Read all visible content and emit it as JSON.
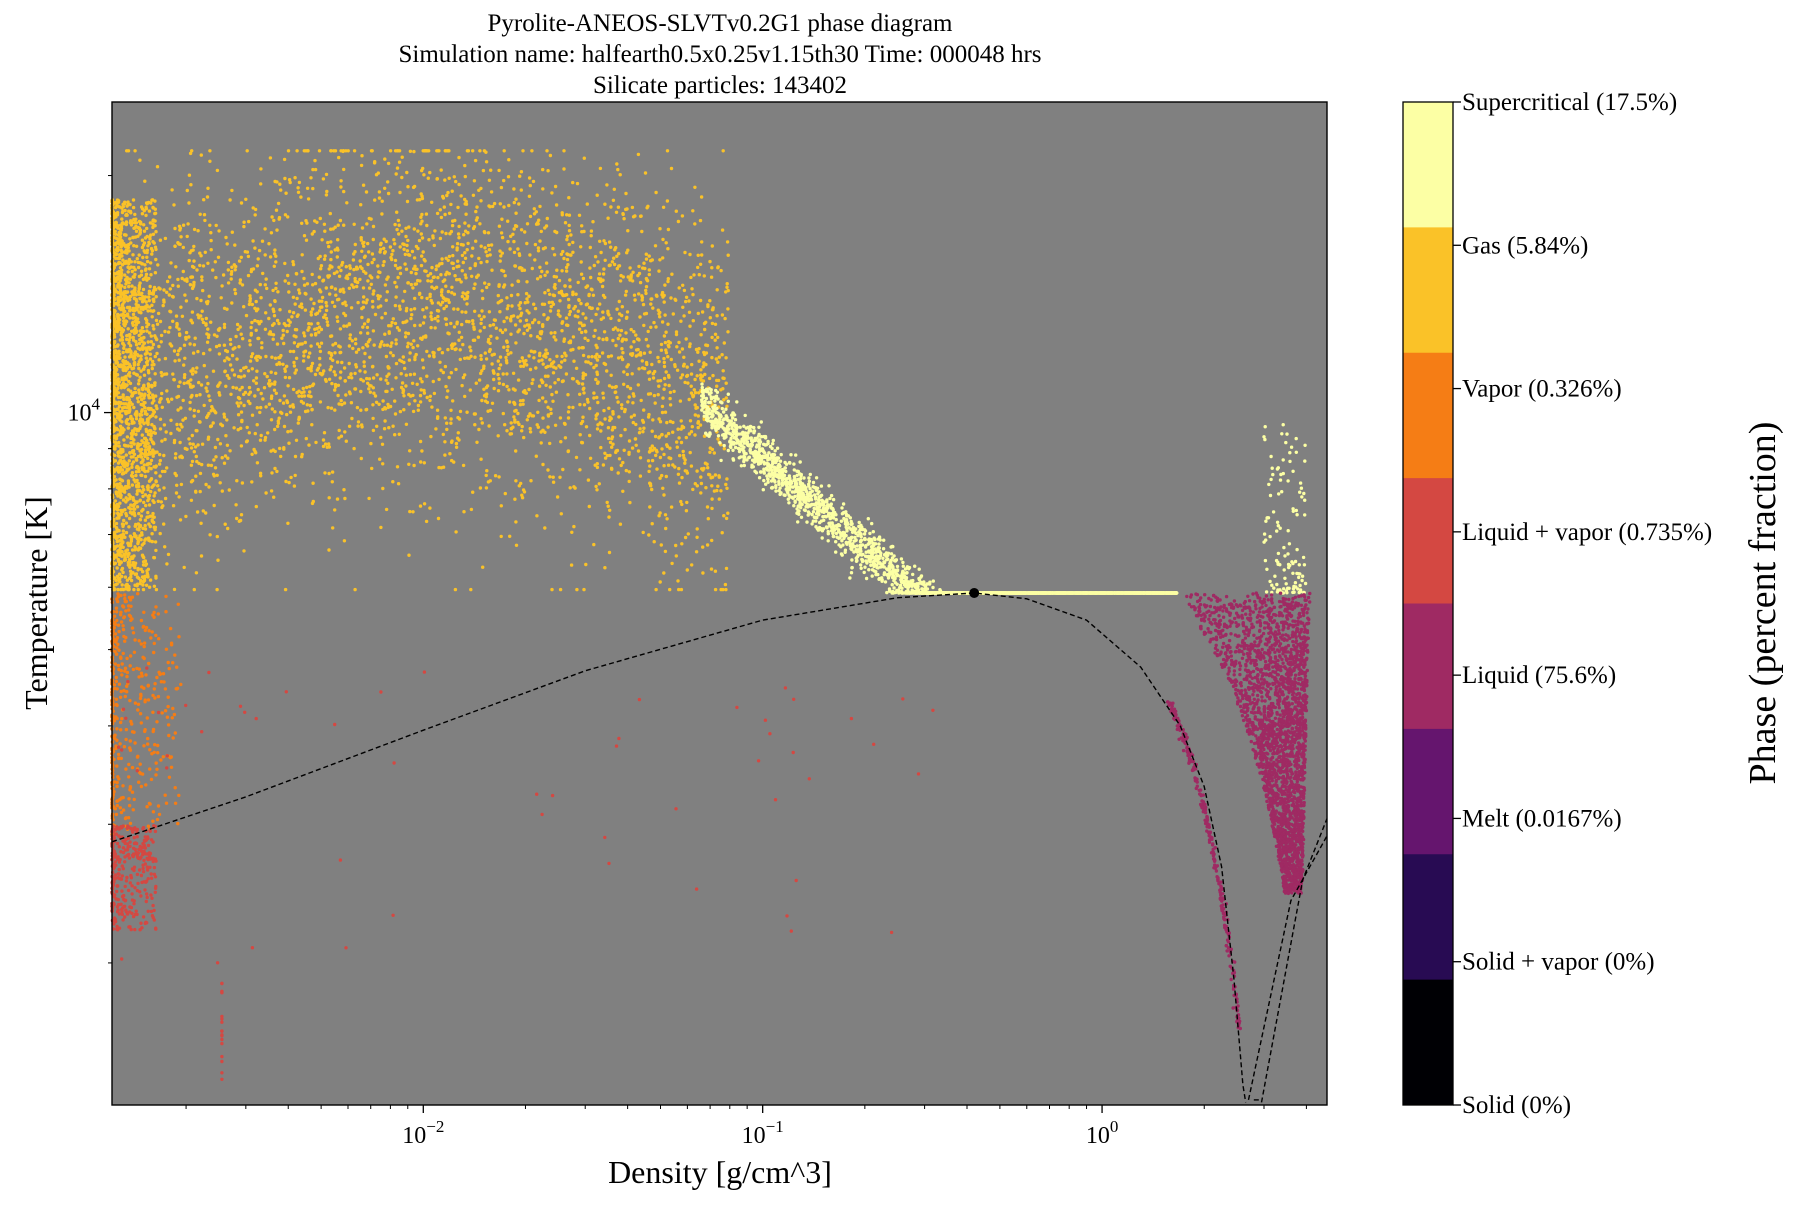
{
  "chart_data": {
    "type": "scatter",
    "title_lines": [
      "Pyrolite-ANEOS-SLVTv0.2G1 phase diagram",
      "Simulation name: halfearth0.5x0.25v1.15th30      Time: 000048 hrs",
      "Silicate particles: 143402"
    ],
    "xlabel": "Density [g/cm^3]",
    "ylabel": "Temperature [K]",
    "xscale": "log",
    "yscale": "log",
    "xlim": [
      0.00121,
      4.6
    ],
    "ylim": [
      1320,
      24800
    ],
    "background_color": "#808080",
    "x_ticks": [
      {
        "value": 0.01,
        "base": "10",
        "exp": "−2"
      },
      {
        "value": 0.1,
        "base": "10",
        "exp": "−1"
      },
      {
        "value": 1,
        "base": "10",
        "exp": "0"
      }
    ],
    "y_ticks": [
      {
        "value": 10000,
        "base": "10",
        "exp": "4"
      }
    ],
    "colorbar": {
      "title": "Phase (percent fraction)",
      "entries": [
        {
          "label": "Supercritical (17.5%)",
          "color": "#fcffa4"
        },
        {
          "label": "Gas (5.84%)",
          "color": "#fac228"
        },
        {
          "label": "Vapor (0.326%)",
          "color": "#f57d15"
        },
        {
          "label": "Liquid + vapor (0.735%)",
          "color": "#d44842"
        },
        {
          "label": "Liquid (75.6%)",
          "color": "#9f2a63"
        },
        {
          "label": "Melt (0.0167%)",
          "color": "#65156e"
        },
        {
          "label": "Solid + vapor (0%)",
          "color": "#280b53"
        },
        {
          "label": "Solid (0%)",
          "color": "#000004"
        }
      ]
    },
    "critical_point": {
      "x": 0.42,
      "y": 5900
    },
    "vapor_dome": [
      [
        0.00121,
        2850
      ],
      [
        0.003,
        3250
      ],
      [
        0.01,
        3950
      ],
      [
        0.03,
        4700
      ],
      [
        0.1,
        5450
      ],
      [
        0.25,
        5820
      ],
      [
        0.42,
        5900
      ],
      [
        0.6,
        5800
      ],
      [
        0.9,
        5450
      ],
      [
        1.3,
        4750
      ],
      [
        1.7,
        4000
      ],
      [
        2.0,
        3350
      ],
      [
        2.25,
        2650
      ],
      [
        2.45,
        1900
      ],
      [
        2.6,
        1400
      ],
      [
        2.65,
        1330
      ]
    ],
    "melt_line_1": [
      [
        2.7,
        1340
      ],
      [
        3.6,
        2400
      ],
      [
        4.6,
        2900
      ]
    ],
    "melt_line_2": [
      [
        2.95,
        1330
      ],
      [
        3.9,
        2550
      ],
      [
        4.6,
        3050
      ]
    ],
    "melt_line_3": [
      [
        2.8,
        1340
      ],
      [
        2.95,
        1340
      ]
    ],
    "regions": [
      {
        "phase": "Gas",
        "color": "#fac228",
        "count": 3500,
        "shape": "gas_band"
      },
      {
        "phase": "Gas",
        "color": "#fac228",
        "count": 1600,
        "shape": "gas_edge"
      },
      {
        "phase": "Supercritical",
        "color": "#fcffa4",
        "count": 2800,
        "shape": "super_band"
      },
      {
        "phase": "Supercritical",
        "color": "#fcffa4",
        "count": 120,
        "shape": "super_spike"
      },
      {
        "phase": "Vapor",
        "color": "#f57d15",
        "count": 420,
        "shape": "vapor_edge"
      },
      {
        "phase": "Liquid + vapor",
        "color": "#d44842",
        "count": 320,
        "shape": "lv_edge"
      },
      {
        "phase": "Liquid + vapor",
        "color": "#d44842",
        "count": 55,
        "shape": "lv_scatter"
      },
      {
        "phase": "Liquid + vapor",
        "color": "#d44842",
        "count": 18,
        "shape": "lv_column"
      },
      {
        "phase": "Liquid",
        "color": "#9f2a63",
        "count": 2600,
        "shape": "liquid_wedge"
      },
      {
        "phase": "Liquid",
        "color": "#9f2a63",
        "count": 260,
        "shape": "liquid_sliver"
      }
    ]
  }
}
